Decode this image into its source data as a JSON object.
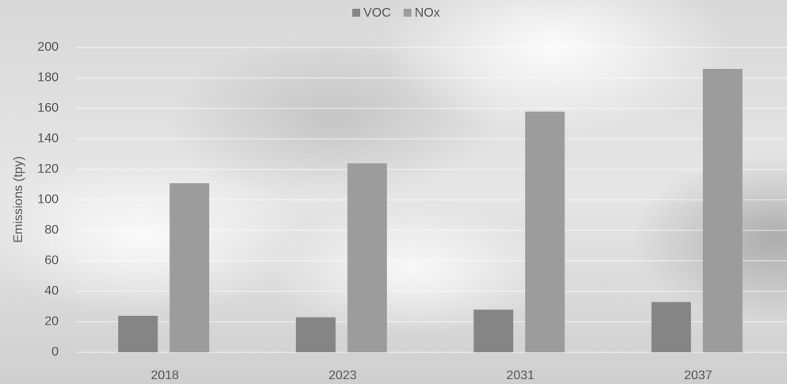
{
  "chart_data": {
    "type": "bar",
    "y_label": "Emissions (tpy)",
    "categories": [
      "2018",
      "2023",
      "2031",
      "2037"
    ],
    "series": [
      {
        "name": "VOC",
        "color": "#858585",
        "values": [
          24,
          23,
          28,
          33
        ]
      },
      {
        "name": "NOx",
        "color": "#9c9c9c",
        "values": [
          111,
          124,
          158,
          186
        ]
      }
    ],
    "ylim": [
      0,
      200
    ],
    "yticks": [
      0,
      20,
      40,
      60,
      80,
      100,
      120,
      140,
      160,
      180,
      200
    ],
    "grid": true,
    "legend": "top"
  }
}
